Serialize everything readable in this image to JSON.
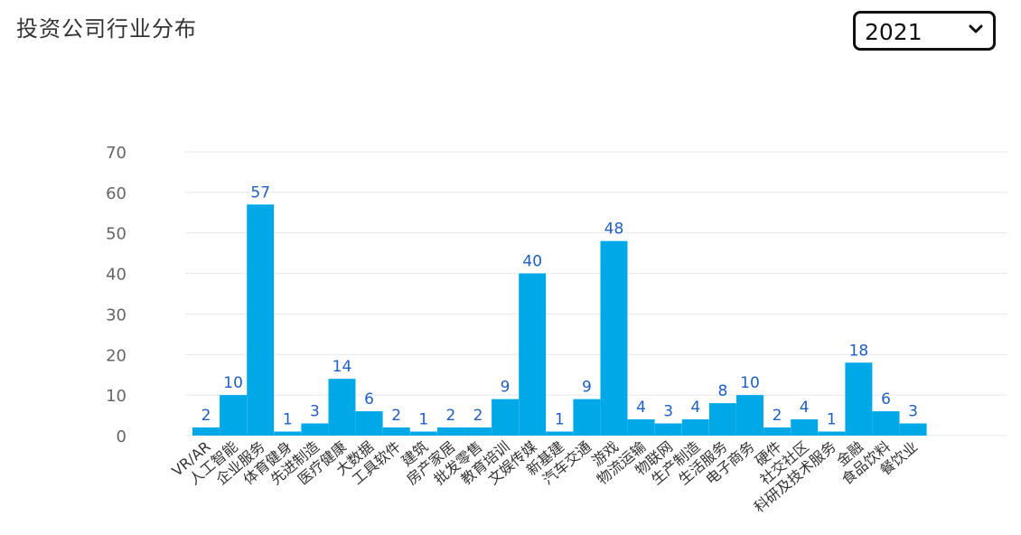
{
  "header": {
    "title": "投资公司行业分布"
  },
  "year_filter": {
    "selected": "2021",
    "icon": "chevron-down-icon"
  },
  "colors": {
    "bar": "#00a8e8",
    "label": "#1f5fc4",
    "grid": "#e4e8ee",
    "tick": "#666666",
    "category": "#333333"
  },
  "chart_data": {
    "type": "bar",
    "title": "投资公司行业分布",
    "xlabel": "",
    "ylabel": "",
    "ylim": [
      0,
      70
    ],
    "yticks": [
      0,
      10,
      20,
      30,
      40,
      50,
      60,
      70
    ],
    "grid": true,
    "legend": "none",
    "categories": [
      "VR/AR",
      "人工智能",
      "企业服务",
      "体育健身",
      "先进制造",
      "医疗健康",
      "大数据",
      "工具软件",
      "建筑",
      "房产家居",
      "批发零售",
      "教育培训",
      "文娱传媒",
      "新基建",
      "汽车交通",
      "游戏",
      "物流运输",
      "物联网",
      "生产制造",
      "生活服务",
      "电子商务",
      "硬件",
      "社交社区",
      "科研及技术服务",
      "金融",
      "食品饮料",
      "餐饮业"
    ],
    "values": [
      2,
      10,
      57,
      1,
      3,
      14,
      6,
      2,
      1,
      2,
      2,
      9,
      40,
      1,
      9,
      48,
      4,
      3,
      4,
      8,
      10,
      2,
      4,
      1,
      18,
      6,
      3
    ]
  }
}
